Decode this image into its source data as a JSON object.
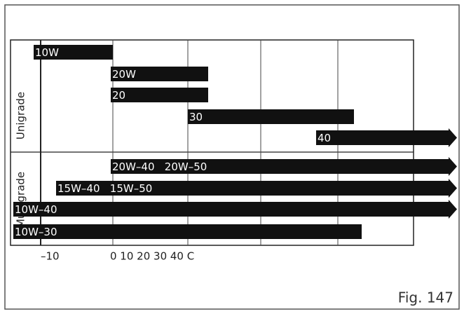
{
  "groups": [
    {
      "label": "Unigrade",
      "bars": [
        "10W",
        "20W",
        "20",
        "30",
        "40"
      ]
    },
    {
      "label": "Multigrade",
      "bars": [
        "20W–40   20W–50",
        "15W–40   15W–50",
        "10W–40",
        "10W–30"
      ]
    }
  ],
  "axis_labels": [
    "–10",
    "0 10 20 30 40 C"
  ],
  "figure_label": "Fig. 147"
}
